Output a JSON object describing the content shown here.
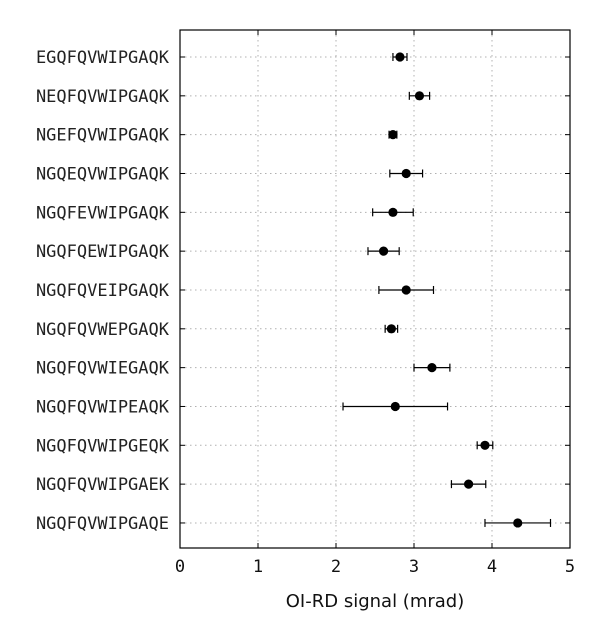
{
  "chart_data": {
    "type": "scatter",
    "title": "",
    "xlabel": "OI-RD signal (mrad)",
    "ylabel": "",
    "xlim": [
      0,
      5
    ],
    "xticks": [
      0,
      1,
      2,
      3,
      4,
      5
    ],
    "grid": true,
    "categories": [
      "EGQFQVWIPGAQK",
      "NEQFQVWIPGAQK",
      "NGEFQVWIPGAQK",
      "NGQEQVWIPGAQK",
      "NGQFEVWIPGAQK",
      "NGQFQEWIPGAQK",
      "NGQFQVEIPGAQK",
      "NGQFQVWEPGAQK",
      "NGQFQVWIEGAQK",
      "NGQFQVWIPEAQK",
      "NGQFQVWIPGEQK",
      "NGQFQVWIPGAEK",
      "NGQFQVWIPGAQE"
    ],
    "values": [
      2.82,
      3.07,
      2.73,
      2.9,
      2.73,
      2.61,
      2.9,
      2.71,
      3.23,
      2.76,
      3.91,
      3.7,
      4.33
    ],
    "errors": [
      0.09,
      0.13,
      0.05,
      0.21,
      0.26,
      0.2,
      0.35,
      0.08,
      0.23,
      0.67,
      0.1,
      0.22,
      0.42
    ]
  }
}
